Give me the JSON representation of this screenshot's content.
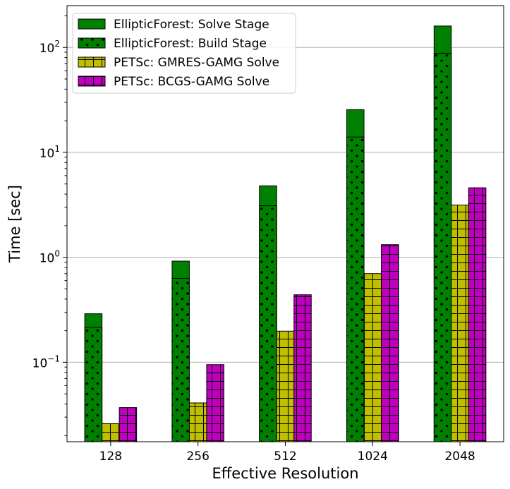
{
  "chart_data": {
    "type": "bar",
    "xlabel": "Effective Resolution",
    "ylabel": "Time [sec]",
    "yscale": "log",
    "ylim": [
      0.0175,
      250
    ],
    "grid": "y-major",
    "legend_placement": "top-left",
    "categories": [
      "128",
      "256",
      "512",
      "1024",
      "2048"
    ],
    "yticks": [
      {
        "value": 0.1,
        "mantissa": "10",
        "exponent": "−1"
      },
      {
        "value": 1,
        "mantissa": "10",
        "exponent": "0"
      },
      {
        "value": 10,
        "mantissa": "10",
        "exponent": "1"
      },
      {
        "value": 100,
        "mantissa": "10",
        "exponent": "2"
      }
    ],
    "series": [
      {
        "name": "EllipticForest: Solve Stage",
        "values": [
          0.29,
          0.92,
          4.8,
          25.5,
          160
        ],
        "color": "#008000",
        "pattern": "none"
      },
      {
        "name": "EllipticForest: Build Stage",
        "values": [
          0.215,
          0.63,
          3.1,
          14.0,
          88
        ],
        "color": "#008000",
        "pattern": "dots"
      },
      {
        "name": "PETSc: GMRES-GAMG Solve",
        "values": [
          0.026,
          0.041,
          0.198,
          0.7,
          3.15
        ],
        "color": "#bfbf00",
        "pattern": "grid"
      },
      {
        "name": "PETSc: BCGS-GAMG Solve",
        "values": [
          0.037,
          0.095,
          0.44,
          1.32,
          4.6
        ],
        "color": "#bf00bf",
        "pattern": "grid"
      }
    ]
  }
}
